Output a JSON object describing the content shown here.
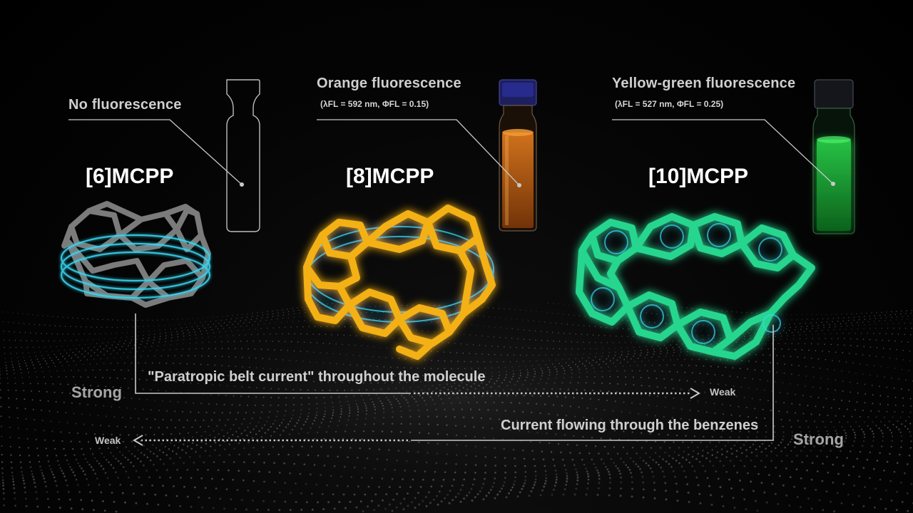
{
  "labels": {
    "no_fluorescence": "No fluorescence",
    "orange_fluorescence": "Orange fluorescence",
    "orange_values": "(λFL = 592 nm, ΦFL = 0.15)",
    "yellow_green_fluorescence": "Yellow-green fluorescence",
    "yellow_green_values": "(λFL = 527 nm, ΦFL = 0.25)"
  },
  "molecules": [
    {
      "name": "[6]MCPP",
      "color": "#7b7b7b"
    },
    {
      "name": "[8]MCPP",
      "color": "#f4b112"
    },
    {
      "name": "[10]MCPP",
      "color": "#27d68f"
    }
  ],
  "currents": {
    "belt": {
      "text": "\"Paratropic belt current\" throughout the molecule",
      "start": "Strong",
      "end": "Weak"
    },
    "benzene": {
      "text": "Current flowing through the benzenes",
      "start": "Strong",
      "end": "Weak"
    }
  },
  "colors": {
    "ring_current": "#37d6f0",
    "vial_orange": "#b85a14",
    "vial_green": "#1fb83e",
    "vial_cap": "#262a78",
    "annotation": "#c8c8c8"
  },
  "icons": [
    "vial-icon",
    "molecule-ring-icon"
  ]
}
